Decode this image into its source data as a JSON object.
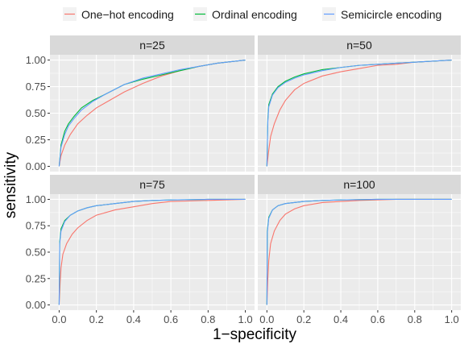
{
  "legend": {
    "items": [
      {
        "label": "One−hot encoding",
        "color": "#F8766D"
      },
      {
        "label": "Ordinal encoding",
        "color": "#00BA38"
      },
      {
        "label": "Semicircle encoding",
        "color": "#619CFF"
      }
    ]
  },
  "chart_data": {
    "type": "line",
    "xlabel": "1−specificity",
    "ylabel": "sensitivity",
    "xlim": [
      0,
      1
    ],
    "ylim": [
      0,
      1
    ],
    "x_ticks": [
      "0.0",
      "0.2",
      "0.4",
      "0.6",
      "0.8",
      "1.0"
    ],
    "y_ticks": [
      "0.00",
      "0.25",
      "0.50",
      "0.75",
      "1.00"
    ],
    "grid": true,
    "legend_position": "top",
    "panels": [
      {
        "title": "n=25",
        "series": [
          {
            "name": "One−hot encoding",
            "color": "#F8766D",
            "points": [
              [
                0,
                0
              ],
              [
                0.01,
                0.1
              ],
              [
                0.03,
                0.2
              ],
              [
                0.06,
                0.3
              ],
              [
                0.1,
                0.4
              ],
              [
                0.15,
                0.48
              ],
              [
                0.2,
                0.55
              ],
              [
                0.28,
                0.63
              ],
              [
                0.35,
                0.7
              ],
              [
                0.45,
                0.78
              ],
              [
                0.55,
                0.85
              ],
              [
                0.65,
                0.9
              ],
              [
                0.75,
                0.94
              ],
              [
                0.85,
                0.97
              ],
              [
                1,
                1
              ]
            ]
          },
          {
            "name": "Ordinal encoding",
            "color": "#00BA38",
            "points": [
              [
                0,
                0
              ],
              [
                0.01,
                0.2
              ],
              [
                0.03,
                0.33
              ],
              [
                0.05,
                0.4
              ],
              [
                0.08,
                0.47
              ],
              [
                0.12,
                0.55
              ],
              [
                0.18,
                0.62
              ],
              [
                0.25,
                0.68
              ],
              [
                0.35,
                0.77
              ],
              [
                0.45,
                0.82
              ],
              [
                0.55,
                0.86
              ],
              [
                0.65,
                0.9
              ],
              [
                0.75,
                0.94
              ],
              [
                0.85,
                0.97
              ],
              [
                1,
                1
              ]
            ]
          },
          {
            "name": "Semicircle encoding",
            "color": "#619CFF",
            "points": [
              [
                0,
                0
              ],
              [
                0.01,
                0.18
              ],
              [
                0.03,
                0.3
              ],
              [
                0.05,
                0.38
              ],
              [
                0.08,
                0.45
              ],
              [
                0.12,
                0.53
              ],
              [
                0.18,
                0.61
              ],
              [
                0.25,
                0.68
              ],
              [
                0.35,
                0.77
              ],
              [
                0.45,
                0.83
              ],
              [
                0.55,
                0.87
              ],
              [
                0.65,
                0.91
              ],
              [
                0.75,
                0.94
              ],
              [
                0.85,
                0.97
              ],
              [
                1,
                1
              ]
            ]
          }
        ]
      },
      {
        "title": "n=50",
        "series": [
          {
            "name": "One−hot encoding",
            "color": "#F8766D",
            "points": [
              [
                0,
                0
              ],
              [
                0.01,
                0.15
              ],
              [
                0.02,
                0.28
              ],
              [
                0.04,
                0.4
              ],
              [
                0.07,
                0.53
              ],
              [
                0.1,
                0.62
              ],
              [
                0.15,
                0.72
              ],
              [
                0.2,
                0.78
              ],
              [
                0.3,
                0.85
              ],
              [
                0.4,
                0.89
              ],
              [
                0.5,
                0.92
              ],
              [
                0.6,
                0.95
              ],
              [
                0.7,
                0.96
              ],
              [
                0.8,
                0.98
              ],
              [
                1,
                1
              ]
            ]
          },
          {
            "name": "Ordinal encoding",
            "color": "#00BA38",
            "points": [
              [
                0,
                0
              ],
              [
                0.005,
                0.45
              ],
              [
                0.01,
                0.58
              ],
              [
                0.03,
                0.68
              ],
              [
                0.06,
                0.75
              ],
              [
                0.1,
                0.8
              ],
              [
                0.15,
                0.84
              ],
              [
                0.2,
                0.87
              ],
              [
                0.3,
                0.91
              ],
              [
                0.4,
                0.93
              ],
              [
                0.5,
                0.95
              ],
              [
                0.6,
                0.96
              ],
              [
                0.7,
                0.97
              ],
              [
                0.8,
                0.98
              ],
              [
                1,
                1
              ]
            ]
          },
          {
            "name": "Semicircle encoding",
            "color": "#619CFF",
            "points": [
              [
                0,
                0
              ],
              [
                0.005,
                0.42
              ],
              [
                0.01,
                0.56
              ],
              [
                0.03,
                0.67
              ],
              [
                0.06,
                0.74
              ],
              [
                0.1,
                0.79
              ],
              [
                0.15,
                0.83
              ],
              [
                0.2,
                0.86
              ],
              [
                0.3,
                0.9
              ],
              [
                0.4,
                0.93
              ],
              [
                0.5,
                0.95
              ],
              [
                0.6,
                0.96
              ],
              [
                0.7,
                0.97
              ],
              [
                0.8,
                0.98
              ],
              [
                1,
                1
              ]
            ]
          }
        ]
      },
      {
        "title": "n=75",
        "series": [
          {
            "name": "One−hot encoding",
            "color": "#F8766D",
            "points": [
              [
                0,
                0
              ],
              [
                0.005,
                0.2
              ],
              [
                0.01,
                0.35
              ],
              [
                0.02,
                0.48
              ],
              [
                0.04,
                0.58
              ],
              [
                0.07,
                0.67
              ],
              [
                0.1,
                0.73
              ],
              [
                0.15,
                0.8
              ],
              [
                0.2,
                0.85
              ],
              [
                0.3,
                0.9
              ],
              [
                0.4,
                0.93
              ],
              [
                0.5,
                0.96
              ],
              [
                0.6,
                0.98
              ],
              [
                0.8,
                0.99
              ],
              [
                1,
                1
              ]
            ]
          },
          {
            "name": "Ordinal encoding",
            "color": "#00BA38",
            "points": [
              [
                0,
                0
              ],
              [
                0.003,
                0.6
              ],
              [
                0.01,
                0.72
              ],
              [
                0.03,
                0.8
              ],
              [
                0.06,
                0.85
              ],
              [
                0.1,
                0.89
              ],
              [
                0.15,
                0.92
              ],
              [
                0.2,
                0.94
              ],
              [
                0.3,
                0.96
              ],
              [
                0.4,
                0.98
              ],
              [
                0.5,
                0.99
              ],
              [
                0.6,
                0.995
              ],
              [
                0.8,
                1
              ],
              [
                1,
                1
              ]
            ]
          },
          {
            "name": "Semicircle encoding",
            "color": "#619CFF",
            "points": [
              [
                0,
                0
              ],
              [
                0.003,
                0.58
              ],
              [
                0.01,
                0.7
              ],
              [
                0.03,
                0.79
              ],
              [
                0.06,
                0.85
              ],
              [
                0.1,
                0.89
              ],
              [
                0.15,
                0.92
              ],
              [
                0.2,
                0.94
              ],
              [
                0.3,
                0.96
              ],
              [
                0.4,
                0.98
              ],
              [
                0.5,
                0.99
              ],
              [
                0.6,
                0.995
              ],
              [
                0.8,
                1
              ],
              [
                1,
                1
              ]
            ]
          }
        ]
      },
      {
        "title": "n=100",
        "series": [
          {
            "name": "One−hot encoding",
            "color": "#F8766D",
            "points": [
              [
                0,
                0
              ],
              [
                0.005,
                0.25
              ],
              [
                0.01,
                0.42
              ],
              [
                0.02,
                0.58
              ],
              [
                0.04,
                0.7
              ],
              [
                0.07,
                0.8
              ],
              [
                0.1,
                0.86
              ],
              [
                0.15,
                0.91
              ],
              [
                0.2,
                0.94
              ],
              [
                0.3,
                0.97
              ],
              [
                0.4,
                0.98
              ],
              [
                0.5,
                0.99
              ],
              [
                0.7,
                1
              ],
              [
                1,
                1
              ]
            ]
          },
          {
            "name": "Ordinal encoding",
            "color": "#00BA38",
            "points": [
              [
                0,
                0
              ],
              [
                0.002,
                0.7
              ],
              [
                0.01,
                0.83
              ],
              [
                0.03,
                0.9
              ],
              [
                0.06,
                0.94
              ],
              [
                0.1,
                0.96
              ],
              [
                0.2,
                0.98
              ],
              [
                0.3,
                0.99
              ],
              [
                0.4,
                0.995
              ],
              [
                0.6,
                1
              ],
              [
                1,
                1
              ]
            ]
          },
          {
            "name": "Semicircle encoding",
            "color": "#619CFF",
            "points": [
              [
                0,
                0
              ],
              [
                0.002,
                0.68
              ],
              [
                0.01,
                0.82
              ],
              [
                0.03,
                0.9
              ],
              [
                0.06,
                0.94
              ],
              [
                0.1,
                0.96
              ],
              [
                0.2,
                0.98
              ],
              [
                0.3,
                0.99
              ],
              [
                0.4,
                0.995
              ],
              [
                0.6,
                1
              ],
              [
                1,
                1
              ]
            ]
          }
        ]
      }
    ]
  }
}
